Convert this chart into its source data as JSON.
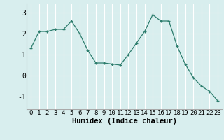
{
  "x": [
    0,
    1,
    2,
    3,
    4,
    5,
    6,
    7,
    8,
    9,
    10,
    11,
    12,
    13,
    14,
    15,
    16,
    17,
    18,
    19,
    20,
    21,
    22,
    23
  ],
  "y": [
    1.3,
    2.1,
    2.1,
    2.2,
    2.2,
    2.6,
    2.0,
    1.2,
    0.6,
    0.6,
    0.55,
    0.5,
    1.0,
    1.55,
    2.1,
    2.9,
    2.6,
    2.6,
    1.4,
    0.55,
    -0.1,
    -0.5,
    -0.75,
    -1.2
  ],
  "xlabel": "Humidex (Indice chaleur)",
  "ylim": [
    -1.6,
    3.4
  ],
  "xlim": [
    -0.5,
    23.5
  ],
  "yticks": [
    -1,
    0,
    1,
    2,
    3
  ],
  "xtick_labels": [
    "0",
    "1",
    "2",
    "3",
    "4",
    "5",
    "6",
    "7",
    "8",
    "9",
    "10",
    "11",
    "12",
    "13",
    "14",
    "15",
    "16",
    "17",
    "18",
    "19",
    "20",
    "21",
    "22",
    "23"
  ],
  "line_color": "#2d7d6d",
  "marker": "+",
  "bg_color": "#d8eeee",
  "grid_color": "#ffffff",
  "tick_label_fontsize": 6.5,
  "xlabel_fontsize": 7.5
}
